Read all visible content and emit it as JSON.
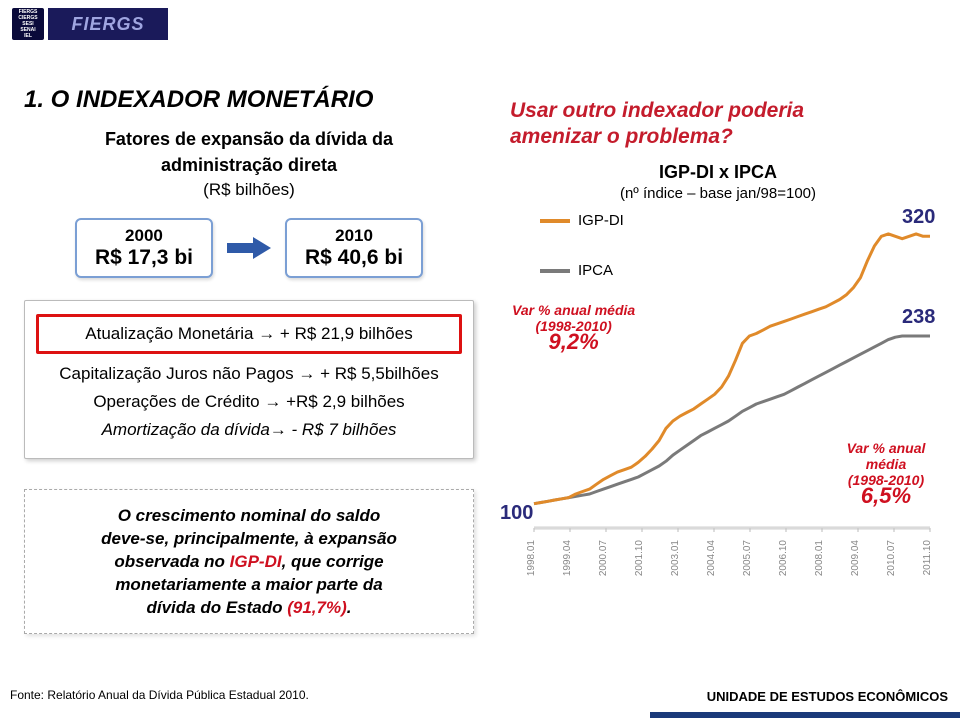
{
  "header": {
    "logo_small_lines": [
      "FIERGS",
      "CIERGS",
      "SESI",
      "SENAI",
      "IEL"
    ],
    "logo_main": "FIERGS"
  },
  "title": "1. O INDEXADOR MONETÁRIO",
  "left": {
    "subtitle_l1": "Fatores de expansão da dívida da",
    "subtitle_l2": "administração direta",
    "unit": "(R$ bilhões)",
    "box2000_year": "2000",
    "box2000_val": "R$ 17,3 bi",
    "box2010_year": "2010",
    "box2010_val": "R$ 40,6 bi",
    "arrow_color": "#2f5aa8",
    "factors": {
      "red_line": "Atualização Monetária → + R$ 21,9 bilhões",
      "line2": "Capitalização Juros não Pagos → + R$ 5,5bilhões",
      "line3": "Operações de Crédito → +R$ 2,9 bilhões",
      "line4": "Amortização da dívida→ - R$ 7 bilhões"
    },
    "note": {
      "t1": "O crescimento nominal do saldo",
      "t2": "deve-se, principalmente, à expansão",
      "t3_a": "observada no ",
      "t3_b": "IGP-DI",
      "t3_c": ", que corrige",
      "t4": "monetariamente a maior parte da",
      "t5_a": "dívida do Estado ",
      "t5_b": "(91,7%)",
      "t5_c": "."
    }
  },
  "right": {
    "question_l1": "Usar outro indexador poderia",
    "question_l2": "amenizar o problema?",
    "chart_title": "IGP-DI x IPCA",
    "chart_sub": "(nº índice – base jan/98=100)",
    "legend1": "IGP-DI",
    "legend2": "IPCA",
    "color_igp": "#e08a2a",
    "color_ipca": "#7a7a7a",
    "grid_color": "#e8e8e8",
    "chart_bg": "#ffffff",
    "end_igp": "320",
    "end_ipca": "238",
    "start_val": "100",
    "varL_l1": "Var % anual média",
    "varL_l2": "(1998-2010)",
    "varL_big": "9,2%",
    "varR_l1": "Var % anual média",
    "varR_l2": "(1998-2010)",
    "varR_big": "6,5%",
    "ylim": [
      80,
      340
    ],
    "xticks": [
      "1998.01",
      "1999.04",
      "2000.07",
      "2001.10",
      "2003.01",
      "2004.04",
      "2005.07",
      "2006.10",
      "2008.01",
      "2009.04",
      "2010.07",
      "2011.10"
    ],
    "igp_series": [
      100,
      101,
      102,
      103,
      104,
      105,
      108,
      110,
      112,
      116,
      120,
      123,
      126,
      128,
      130,
      134,
      139,
      145,
      152,
      162,
      168,
      172,
      175,
      178,
      182,
      186,
      190,
      196,
      205,
      218,
      232,
      238,
      240,
      243,
      246,
      248,
      250,
      252,
      254,
      256,
      258,
      260,
      262,
      265,
      268,
      272,
      278,
      286,
      300,
      312,
      320,
      322,
      320,
      318,
      320,
      322,
      320,
      320
    ],
    "ipca_series": [
      100,
      101,
      102,
      103,
      104,
      105,
      106,
      107,
      108,
      110,
      112,
      114,
      116,
      118,
      120,
      122,
      125,
      128,
      131,
      135,
      140,
      144,
      148,
      152,
      156,
      159,
      162,
      165,
      168,
      172,
      176,
      179,
      182,
      184,
      186,
      188,
      190,
      193,
      196,
      199,
      202,
      205,
      208,
      211,
      214,
      217,
      220,
      223,
      226,
      229,
      232,
      235,
      237,
      238,
      238,
      238,
      238,
      238
    ],
    "line_width": 3
  },
  "footer": {
    "note": "Fonte: Relatório Anual da Dívida Pública Estadual 2010.",
    "right": "UNIDADE DE ESTUDOS ECONÔMICOS"
  }
}
